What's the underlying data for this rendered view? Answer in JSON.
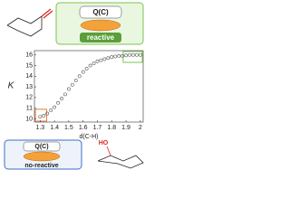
{
  "chart_data": {
    "type": "scatter",
    "xlabel": "d(C-H)",
    "ylabel": "K",
    "annotations": [
      "Q(C)",
      "reactive",
      "Q(C)",
      "no-reactive",
      "HO"
    ],
    "x": [
      1.3,
      1.325,
      1.35,
      1.375,
      1.4,
      1.425,
      1.45,
      1.475,
      1.5,
      1.525,
      1.55,
      1.575,
      1.6,
      1.625,
      1.65,
      1.675,
      1.7,
      1.725,
      1.75,
      1.775,
      1.8,
      1.825,
      1.85,
      1.875,
      1.9,
      1.925,
      1.95,
      1.975,
      2.0
    ],
    "values": [
      10.2,
      10.3,
      10.5,
      10.8,
      11.1,
      11.5,
      11.9,
      12.3,
      12.8,
      13.2,
      13.6,
      14.0,
      14.4,
      14.7,
      15.0,
      15.2,
      15.4,
      15.5,
      15.6,
      15.7,
      15.8,
      15.85,
      15.9,
      15.9,
      15.95,
      16.0,
      16.0,
      16.0,
      16.0
    ],
    "color": "#555555",
    "xlim": [
      1.26,
      2.02
    ],
    "ylim": [
      9.7,
      16.4
    ],
    "xticks": [
      1.3,
      1.4,
      1.5,
      1.6,
      1.7,
      1.8,
      1.9,
      2
    ],
    "yticks": [
      10,
      11,
      12,
      13,
      14,
      15,
      16
    ]
  }
}
